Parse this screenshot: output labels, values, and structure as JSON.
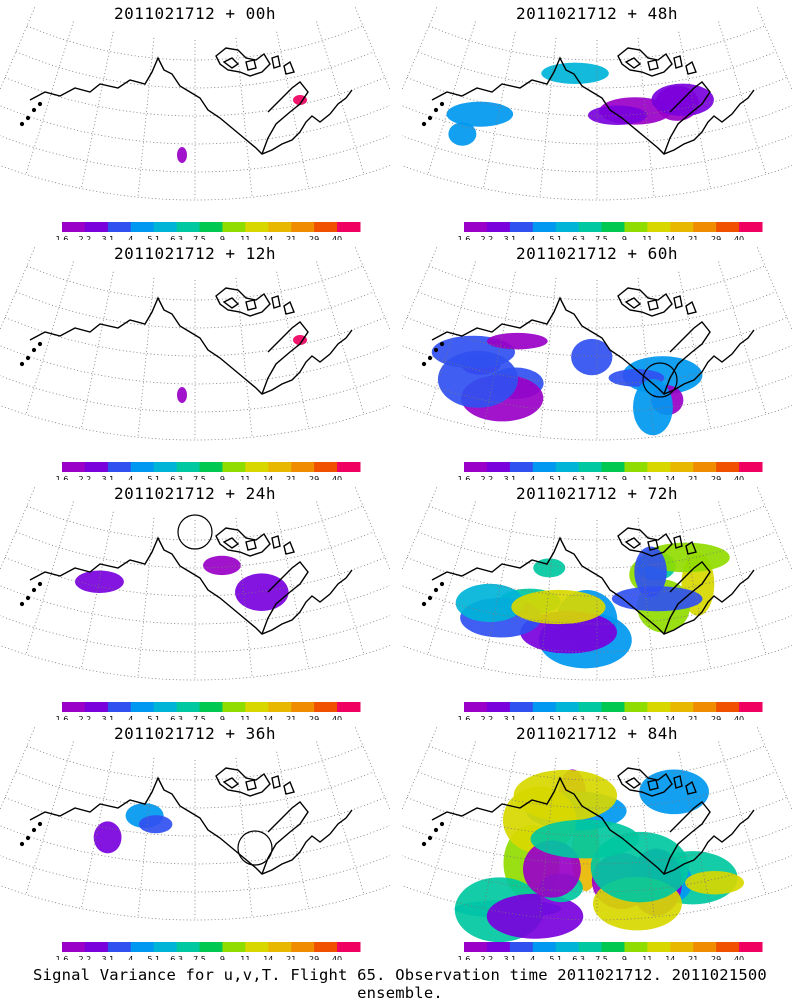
{
  "panels": [
    {
      "title": "2011021712 + 00h",
      "coverage": 0
    },
    {
      "title": "2011021712 + 48h",
      "coverage": 2
    },
    {
      "title": "2011021712 + 12h",
      "coverage": 0
    },
    {
      "title": "2011021712 + 60h",
      "coverage": 3
    },
    {
      "title": "2011021712 + 24h",
      "coverage": 1
    },
    {
      "title": "2011021712 + 72h",
      "coverage": 4
    },
    {
      "title": "2011021712 + 36h",
      "coverage": 1
    },
    {
      "title": "2011021712 + 84h",
      "coverage": 5
    }
  ],
  "colorbar": {
    "colors": [
      "#9a00c8",
      "#7a00dc",
      "#3050f0",
      "#0098f0",
      "#00b4d8",
      "#00c8a0",
      "#00c850",
      "#90dc00",
      "#d8d800",
      "#e8b800",
      "#f08c00",
      "#f05000",
      "#f00060"
    ],
    "labels": [
      "1.6",
      "2.2",
      "3.1",
      "4",
      "5.1",
      "6.3",
      "7.5",
      "9",
      "11",
      "14",
      "21",
      "29",
      "40"
    ]
  },
  "footer": "Signal Variance for u,v,T. Flight 65. Observation time 2011021712. 2011021500 ensemble."
}
